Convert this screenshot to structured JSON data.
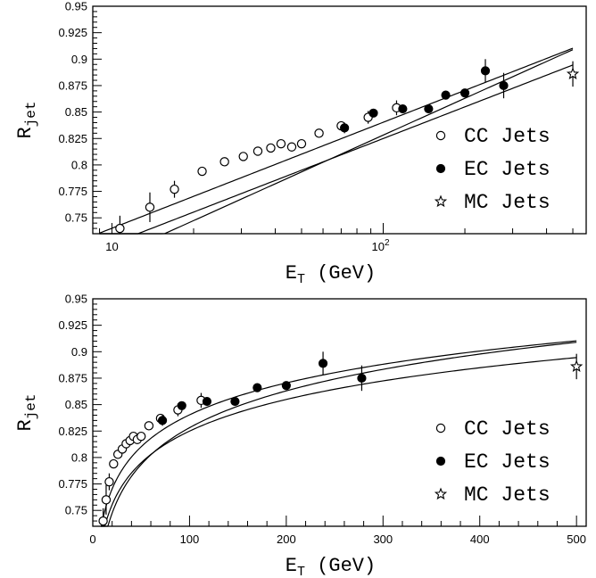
{
  "chart_data": [
    {
      "type": "scatter",
      "xscale": "log",
      "xlim": [
        8.5,
        560
      ],
      "ylim": [
        0.735,
        0.95
      ],
      "xticks": [
        {
          "v": 10,
          "label": "10"
        },
        {
          "v": 100,
          "label": "10",
          "sup": "2"
        }
      ],
      "yticks": [
        0.75,
        0.775,
        0.8,
        0.825,
        0.85,
        0.875,
        0.9,
        0.925,
        0.95
      ],
      "ytick_labels": [
        "0.75",
        "0.775",
        "0.8",
        "0.825",
        "0.85",
        "0.875",
        "0.9",
        "0.925",
        "0.95"
      ],
      "xlabel": {
        "main": "E",
        "sub": "T",
        "rest": " (GeV)"
      },
      "ylabel": {
        "main": "R",
        "sub": "jet"
      },
      "legend": {
        "position": "bottom-right",
        "entries": [
          {
            "label": "CC Jets",
            "marker": "open-circle"
          },
          {
            "label": "EC Jets",
            "marker": "filled-circle"
          },
          {
            "label": "MC Jets",
            "marker": "open-star"
          }
        ]
      }
    },
    {
      "type": "scatter",
      "xscale": "linear",
      "xlim": [
        0,
        510
      ],
      "ylim": [
        0.735,
        0.95
      ],
      "xticks": [
        {
          "v": 0,
          "label": "0"
        },
        {
          "v": 100,
          "label": "100"
        },
        {
          "v": 200,
          "label": "200"
        },
        {
          "v": 300,
          "label": "300"
        },
        {
          "v": 400,
          "label": "400"
        },
        {
          "v": 500,
          "label": "500"
        }
      ],
      "yticks": [
        0.75,
        0.775,
        0.8,
        0.825,
        0.85,
        0.875,
        0.9,
        0.925,
        0.95
      ],
      "ytick_labels": [
        "0.75",
        "0.775",
        "0.8",
        "0.825",
        "0.85",
        "0.875",
        "0.9",
        "0.925",
        "0.95"
      ],
      "xlabel": {
        "main": "E",
        "sub": "T",
        "rest": " (GeV)"
      },
      "ylabel": {
        "main": "R",
        "sub": "jet"
      },
      "legend": {
        "position": "bottom-right",
        "entries": [
          {
            "label": "CC Jets",
            "marker": "open-circle"
          },
          {
            "label": "EC Jets",
            "marker": "filled-circle"
          },
          {
            "label": "MC Jets",
            "marker": "open-star"
          }
        ]
      }
    }
  ],
  "series": {
    "cc": [
      {
        "x": 10.7,
        "y": 0.74,
        "e": 0.012
      },
      {
        "x": 13.8,
        "y": 0.76,
        "e": 0.014
      },
      {
        "x": 17.0,
        "y": 0.777,
        "e": 0.008
      },
      {
        "x": 21.5,
        "y": 0.794,
        "e": 0.004
      },
      {
        "x": 26.0,
        "y": 0.803,
        "e": 0.003
      },
      {
        "x": 30.5,
        "y": 0.808,
        "e": 0.003
      },
      {
        "x": 34.5,
        "y": 0.813,
        "e": 0.003
      },
      {
        "x": 38.5,
        "y": 0.816,
        "e": 0.003
      },
      {
        "x": 42.0,
        "y": 0.82,
        "e": 0.003
      },
      {
        "x": 46.0,
        "y": 0.817,
        "e": 0.003
      },
      {
        "x": 50.0,
        "y": 0.82,
        "e": 0.003
      },
      {
        "x": 58.0,
        "y": 0.83,
        "e": 0.003
      },
      {
        "x": 70.0,
        "y": 0.837,
        "e": 0.004
      },
      {
        "x": 88.0,
        "y": 0.845,
        "e": 0.006
      },
      {
        "x": 112.0,
        "y": 0.854,
        "e": 0.007
      }
    ],
    "ec": [
      {
        "x": 72.0,
        "y": 0.835,
        "e": 0.005
      },
      {
        "x": 92.0,
        "y": 0.849,
        "e": 0.004
      },
      {
        "x": 118.0,
        "y": 0.853,
        "e": 0.004
      },
      {
        "x": 147.0,
        "y": 0.853,
        "e": 0.004
      },
      {
        "x": 170.0,
        "y": 0.866,
        "e": 0.004
      },
      {
        "x": 200.0,
        "y": 0.868,
        "e": 0.004
      },
      {
        "x": 238.0,
        "y": 0.889,
        "e": 0.011
      },
      {
        "x": 278.0,
        "y": 0.875,
        "e": 0.012
      }
    ],
    "mc": [
      {
        "x": 500.0,
        "y": 0.886,
        "e": 0.012
      }
    ]
  },
  "curves": [
    {
      "a": 0.64,
      "b": 0.0435
    },
    {
      "a": 0.626,
      "b": 0.0432
    },
    {
      "a": 0.597,
      "b": 0.0502
    }
  ]
}
